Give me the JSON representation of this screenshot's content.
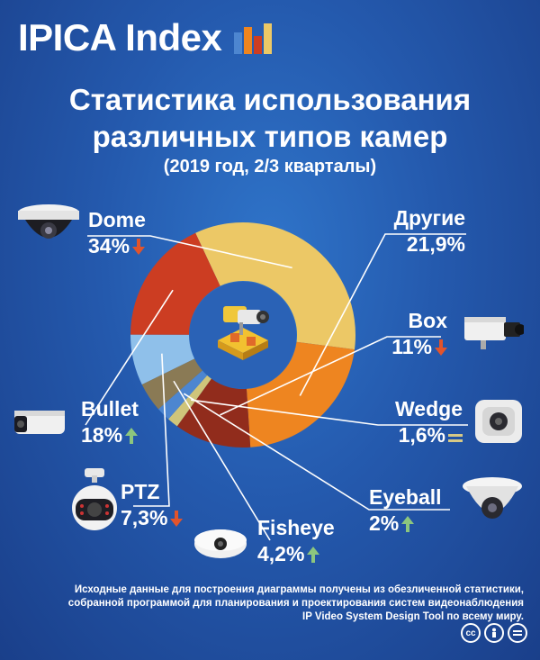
{
  "brand": {
    "name": "IPICA Index"
  },
  "title": {
    "line1": "Статистика использования",
    "line2": "различных типов камер",
    "line3": "(2019 год, 2/3 кварталы)"
  },
  "chart_data": {
    "type": "pie",
    "title": "Статистика использования различных типов камер",
    "subtitle": "(2019 год, 2/3 кварталы)",
    "series": [
      {
        "name": "Dome",
        "label": "34%",
        "value": 34,
        "trend": "down",
        "color": "#ecc866"
      },
      {
        "name": "Другие",
        "label": "21,9%",
        "value": 21.9,
        "trend": "none",
        "color": "#ee8520"
      },
      {
        "name": "Box",
        "label": "11%",
        "value": 11,
        "trend": "down",
        "color": "#912c1c"
      },
      {
        "name": "Wedge",
        "label": "1,6%",
        "value": 1.6,
        "trend": "equal",
        "color": "#cfc57a"
      },
      {
        "name": "Eyeball",
        "label": "2%",
        "value": 2,
        "trend": "up",
        "color": "#4d86d0"
      },
      {
        "name": "Fisheye",
        "label": "4,2%",
        "value": 4.2,
        "trend": "up",
        "color": "#8a7a55"
      },
      {
        "name": "PTZ",
        "label": "7,3%",
        "value": 7.3,
        "trend": "down",
        "color": "#8fc0ea"
      },
      {
        "name": "Bullet",
        "label": "18%",
        "value": 18,
        "trend": "up",
        "color": "#cc3d22"
      }
    ]
  },
  "colors": {
    "down": "#e2542c",
    "up": "#8cc67e",
    "equal": "#d7c985"
  },
  "footer": {
    "line1": "Исходные данные для построения диаграммы получены из обезличенной статистики,",
    "line2": "собранной программой для планирования и проектирования систем видеонаблюдения",
    "line3": "IP Video System Design Tool по всему миру."
  },
  "license_icons": [
    "creative-commons-icon",
    "attribution-icon",
    "no-derivatives-icon"
  ]
}
